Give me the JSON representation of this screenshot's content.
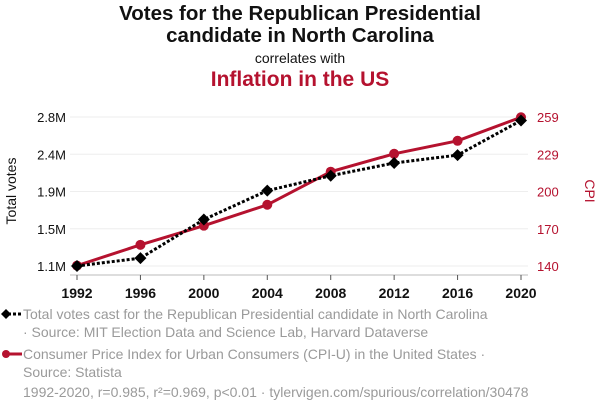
{
  "header": {
    "title_line1": "Votes for the Republican Presidential",
    "title_line2": "candidate in North Carolina",
    "correlates": "correlates with",
    "title2": "Inflation in the US"
  },
  "chart_data": {
    "type": "line",
    "title": "Votes for the Republican Presidential candidate in North Carolina correlates with Inflation in the US",
    "x": [
      1992,
      1996,
      2000,
      2004,
      2008,
      2012,
      2016,
      2020
    ],
    "x_tick_labels": [
      "1992",
      "1996",
      "2000",
      "2004",
      "2008",
      "2012",
      "2016",
      "2020"
    ],
    "xlabel": "",
    "grid": true,
    "legend_placement": "bottom",
    "y_left": {
      "label": "Total votes",
      "ylim": [
        1100000,
        2800000
      ],
      "tick_values": [
        1100000,
        1525000,
        1950000,
        2375000,
        2800000
      ],
      "tick_labels": [
        "1.1M",
        "1.5M",
        "1.9M",
        "2.4M",
        "2.8M"
      ],
      "color": "#111111"
    },
    "y_right": {
      "label": "CPI",
      "ylim": [
        140,
        259
      ],
      "tick_values": [
        140,
        169.75,
        199.5,
        229.25,
        259
      ],
      "tick_labels": [
        "140",
        "170",
        "200",
        "229",
        "259"
      ],
      "color": "#b5122f"
    },
    "series": [
      {
        "name": "Total votes cast for the Republican Presidential candidate in North Carolina",
        "axis": "left",
        "color": "#000000",
        "style": "dotted",
        "marker": "diamond",
        "values": [
          1100000,
          1190000,
          1630000,
          1960000,
          2130000,
          2275000,
          2365000,
          2760000
        ]
      },
      {
        "name": "Consumer Price Index for Urban Consumers (CPI-U) in the United States",
        "axis": "right",
        "color": "#b5122f",
        "style": "solid",
        "marker": "circle",
        "values": [
          140.3,
          156.9,
          172.2,
          188.9,
          215.3,
          229.6,
          240.0,
          258.8
        ]
      }
    ]
  },
  "legend": {
    "items": [
      {
        "line1": "Total votes cast for the Republican Presidential candidate in North Carolina",
        "line2": "· Source: MIT Election Data and Science Lab, Harvard Dataverse"
      },
      {
        "line1": "Consumer Price Index for Urban Consumers (CPI-U) in the United States ·",
        "line2": "Source: Statista"
      }
    ]
  },
  "footer": {
    "text": "1992-2020, r=0.985, r²=0.969, p<0.01 · tylervigen.com/spurious/correlation/30478"
  }
}
